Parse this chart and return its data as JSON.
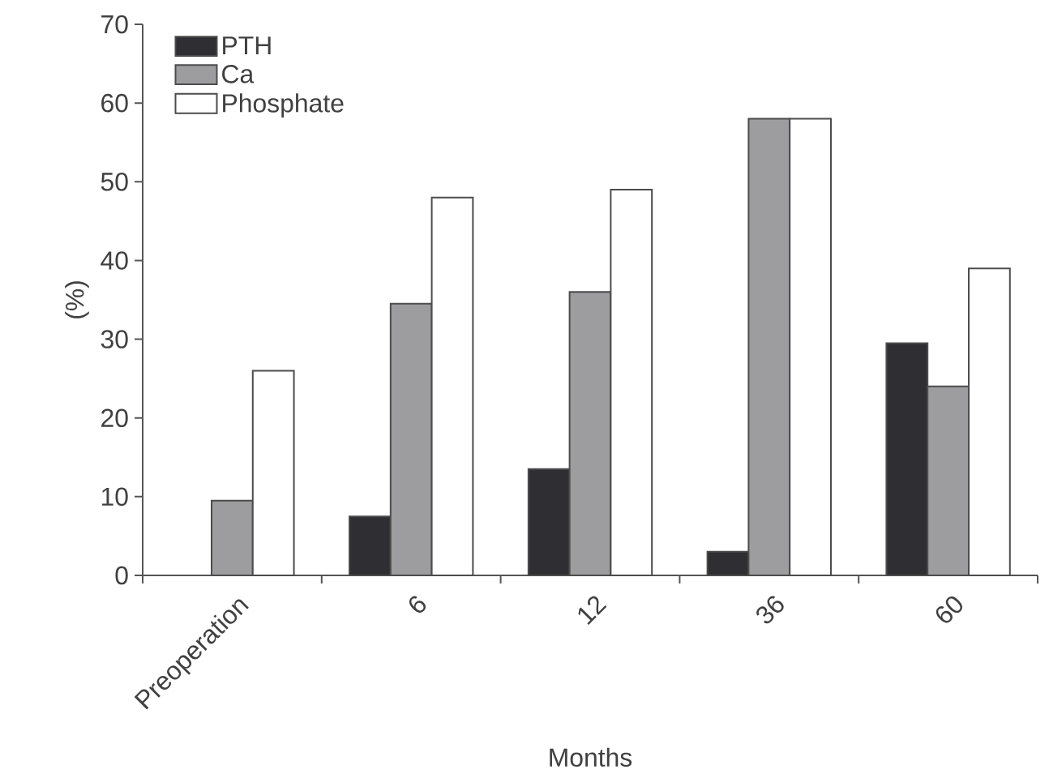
{
  "chart_data": {
    "type": "bar",
    "xlabel": "Months",
    "ylabel": "(%)",
    "categories": [
      "Preoperation",
      "6",
      "12",
      "36",
      "60"
    ],
    "series": [
      {
        "name": "PTH",
        "color": "#2e2e33",
        "values": [
          null,
          7.5,
          13.5,
          3,
          29.5
        ]
      },
      {
        "name": "Ca",
        "color": "#9d9d9f",
        "values": [
          9.5,
          34.5,
          36,
          58,
          24
        ]
      },
      {
        "name": "Phosphate",
        "color": "#ffffff",
        "values": [
          26,
          48,
          49,
          58,
          39
        ]
      }
    ],
    "ylim": [
      0,
      70
    ],
    "yticks": [
      0,
      10,
      20,
      30,
      40,
      50,
      60,
      70
    ],
    "legend": "top left"
  }
}
